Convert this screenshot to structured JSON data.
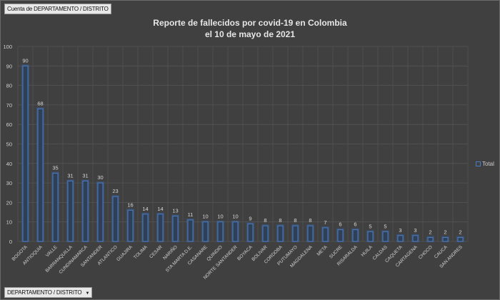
{
  "pivot": {
    "value_field": "Cuenta de DEPARTAMENTO / DISTRITO",
    "axis_field": "DEPARTAMENTO / DISTRITO",
    "axis_field_icon": "dropdown-arrow-icon"
  },
  "chart_data": {
    "type": "bar",
    "title_line1": "Reporte de fallecidos por covid-19 en Colombia",
    "title_line2": "el 10 de mayo de 2021",
    "categories": [
      "BOGOTA",
      "ANTIOQUIA",
      "VALLE",
      "BARRANQUILLA",
      "CUNDINAMARCA",
      "SANTANDER",
      "ATLANTICO",
      "GUAJIRA",
      "TOLIMA",
      "CESAR",
      "NARIÑO",
      "STA MARTA D.E.",
      "CASANARE",
      "QUINDIO",
      "NORTE SANTANDER",
      "BOYACA",
      "BOLIVAR",
      "CORDOBA",
      "PUTUMAYO",
      "MAGDALENA",
      "META",
      "SUCRE",
      "RISARALDA",
      "HUILA",
      "CALDAS",
      "CAQUETA",
      "CARTAGENA",
      "CHOCO",
      "CAUCA",
      "SAN ANDRES"
    ],
    "series": [
      {
        "name": "Total",
        "values": [
          90,
          68,
          35,
          31,
          31,
          30,
          23,
          16,
          14,
          14,
          13,
          11,
          10,
          10,
          10,
          9,
          8,
          8,
          8,
          8,
          7,
          6,
          6,
          5,
          5,
          3,
          3,
          2,
          2,
          2
        ]
      }
    ],
    "ylim": [
      0,
      100
    ],
    "yticks": [
      0,
      10,
      20,
      30,
      40,
      50,
      60,
      70,
      80,
      90,
      100
    ],
    "grid": true,
    "legend_position": "right",
    "colors": {
      "bar_outline": "#4a7cc4",
      "bar_fill": "#2f3f55",
      "background": "#404040"
    }
  }
}
